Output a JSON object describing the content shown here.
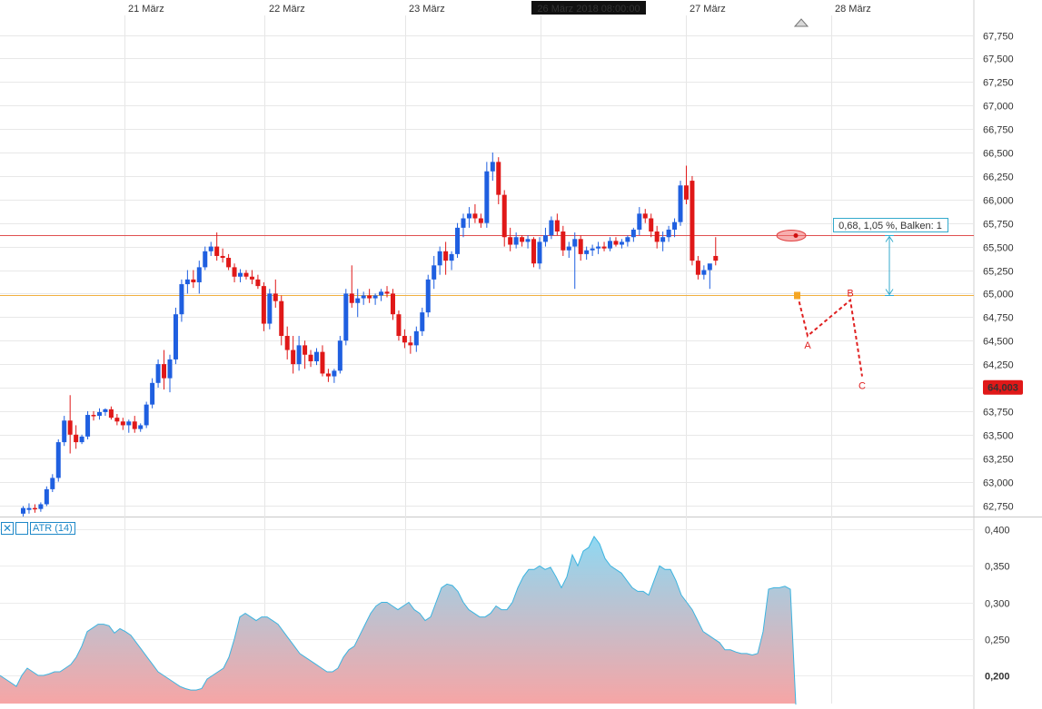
{
  "chart_data": [
    {
      "type": "candlestick",
      "dates": [
        "21 März",
        "22 März",
        "23 März",
        "27 März",
        "28 März"
      ],
      "highlighted_date": "26 März 2018 08:00:00",
      "y_ticks": [
        "67,750",
        "67,500",
        "67,250",
        "67,000",
        "66,750",
        "66,500",
        "66,250",
        "66,000",
        "65,750",
        "65,500",
        "65,250",
        "65,000",
        "64,750",
        "64,500",
        "64,250",
        "64,000",
        "63,750",
        "63,500",
        "63,250",
        "63,000",
        "62,750"
      ],
      "ylim": [
        62.6,
        67.9
      ],
      "current_price_label": "64,003",
      "candles": [
        [
          62.66,
          62.74,
          62.63,
          62.72
        ],
        [
          62.7,
          62.77,
          62.66,
          62.72
        ],
        [
          62.72,
          62.76,
          62.67,
          62.71
        ],
        [
          62.71,
          62.78,
          62.68,
          62.76
        ],
        [
          62.76,
          62.95,
          62.74,
          62.92
        ],
        [
          62.92,
          63.08,
          62.89,
          63.04
        ],
        [
          63.04,
          63.45,
          63.0,
          63.42
        ],
        [
          63.42,
          63.7,
          63.38,
          63.65
        ],
        [
          63.65,
          63.92,
          63.3,
          63.5
        ],
        [
          63.5,
          63.6,
          63.35,
          63.42
        ],
        [
          63.42,
          63.5,
          63.4,
          63.48
        ],
        [
          63.48,
          63.75,
          63.45,
          63.71
        ],
        [
          63.71,
          63.75,
          63.65,
          63.7
        ],
        [
          63.7,
          63.78,
          63.66,
          63.74
        ],
        [
          63.74,
          63.78,
          63.7,
          63.77
        ],
        [
          63.77,
          63.8,
          63.66,
          63.68
        ],
        [
          63.68,
          63.72,
          63.6,
          63.64
        ],
        [
          63.64,
          63.68,
          63.55,
          63.6
        ],
        [
          63.6,
          63.66,
          63.52,
          63.64
        ],
        [
          63.64,
          63.7,
          63.52,
          63.56
        ],
        [
          63.56,
          63.62,
          63.53,
          63.6
        ],
        [
          63.6,
          63.85,
          63.57,
          63.82
        ],
        [
          63.82,
          64.1,
          63.78,
          64.05
        ],
        [
          64.05,
          64.3,
          64.0,
          64.25
        ],
        [
          64.25,
          64.4,
          63.98,
          64.1
        ],
        [
          64.1,
          64.35,
          63.95,
          64.3
        ],
        [
          64.3,
          64.85,
          64.25,
          64.78
        ],
        [
          64.78,
          65.15,
          64.7,
          65.1
        ],
        [
          65.1,
          65.25,
          65.0,
          65.15
        ],
        [
          65.15,
          65.25,
          65.06,
          65.12
        ],
        [
          65.12,
          65.35,
          65.0,
          65.28
        ],
        [
          65.28,
          65.5,
          65.25,
          65.45
        ],
        [
          65.45,
          65.55,
          65.4,
          65.5
        ],
        [
          65.5,
          65.65,
          65.35,
          65.4
        ],
        [
          65.4,
          65.48,
          65.33,
          65.38
        ],
        [
          65.38,
          65.42,
          65.25,
          65.28
        ],
        [
          65.28,
          65.32,
          65.12,
          65.18
        ],
        [
          65.18,
          65.26,
          65.12,
          65.22
        ],
        [
          65.22,
          65.25,
          65.15,
          65.18
        ],
        [
          65.18,
          65.25,
          65.1,
          65.15
        ],
        [
          65.15,
          65.2,
          65.05,
          65.08
        ],
        [
          65.08,
          65.12,
          64.6,
          64.68
        ],
        [
          64.68,
          65.05,
          64.62,
          65.0
        ],
        [
          65.0,
          65.15,
          64.85,
          64.92
        ],
        [
          64.92,
          64.98,
          64.45,
          64.55
        ],
        [
          64.55,
          64.65,
          64.3,
          64.4
        ],
        [
          64.4,
          64.55,
          64.15,
          64.25
        ],
        [
          64.25,
          64.55,
          64.18,
          64.45
        ],
        [
          64.45,
          64.5,
          64.2,
          64.35
        ],
        [
          64.35,
          64.4,
          64.22,
          64.28
        ],
        [
          64.28,
          64.42,
          64.24,
          64.38
        ],
        [
          64.38,
          64.45,
          64.12,
          64.15
        ],
        [
          64.15,
          64.2,
          64.06,
          64.12
        ],
        [
          64.12,
          64.2,
          64.05,
          64.18
        ],
        [
          64.18,
          64.55,
          64.15,
          64.5
        ],
        [
          64.5,
          65.05,
          64.45,
          65.0
        ],
        [
          65.0,
          65.3,
          64.85,
          64.9
        ],
        [
          64.9,
          65.05,
          64.75,
          64.95
        ],
        [
          64.95,
          65.02,
          64.88,
          64.98
        ],
        [
          64.98,
          65.05,
          64.9,
          64.95
        ],
        [
          64.95,
          65.0,
          64.88,
          64.98
        ],
        [
          64.98,
          65.05,
          64.92,
          65.02
        ],
        [
          65.02,
          65.08,
          64.96,
          65.0
        ],
        [
          65.0,
          65.05,
          64.72,
          64.78
        ],
        [
          64.78,
          64.82,
          64.5,
          64.55
        ],
        [
          64.55,
          64.62,
          64.42,
          64.48
        ],
        [
          64.48,
          64.55,
          64.36,
          64.45
        ],
        [
          64.45,
          64.65,
          64.38,
          64.6
        ],
        [
          64.6,
          64.85,
          64.55,
          64.8
        ],
        [
          64.8,
          65.2,
          64.75,
          65.15
        ],
        [
          65.15,
          65.4,
          65.05,
          65.3
        ],
        [
          65.3,
          65.5,
          65.2,
          65.45
        ],
        [
          65.45,
          65.55,
          65.2,
          65.35
        ],
        [
          65.35,
          65.45,
          65.25,
          65.42
        ],
        [
          65.42,
          65.75,
          65.38,
          65.7
        ],
        [
          65.7,
          65.85,
          65.6,
          65.8
        ],
        [
          65.8,
          65.92,
          65.7,
          65.85
        ],
        [
          65.85,
          65.95,
          65.75,
          65.8
        ],
        [
          65.8,
          65.85,
          65.7,
          65.75
        ],
        [
          65.75,
          66.4,
          65.7,
          66.3
        ],
        [
          66.3,
          66.5,
          66.2,
          66.4
        ],
        [
          66.4,
          66.45,
          65.95,
          66.05
        ],
        [
          66.05,
          66.1,
          65.5,
          65.6
        ],
        [
          65.6,
          65.7,
          65.45,
          65.52
        ],
        [
          65.52,
          65.65,
          65.48,
          65.6
        ],
        [
          65.6,
          65.62,
          65.5,
          65.55
        ],
        [
          65.55,
          65.62,
          65.48,
          65.58
        ],
        [
          65.58,
          65.6,
          65.28,
          65.32
        ],
        [
          65.32,
          65.6,
          65.26,
          65.55
        ],
        [
          65.55,
          65.7,
          65.5,
          65.62
        ],
        [
          65.62,
          65.82,
          65.58,
          65.78
        ],
        [
          65.78,
          65.85,
          65.62,
          65.66
        ],
        [
          65.66,
          65.72,
          65.4,
          65.46
        ],
        [
          65.46,
          65.55,
          65.38,
          65.5
        ],
        [
          65.5,
          65.65,
          65.05,
          65.58
        ],
        [
          65.58,
          65.62,
          65.35,
          65.42
        ],
        [
          65.42,
          65.5,
          65.36,
          65.46
        ],
        [
          65.46,
          65.52,
          65.4,
          65.48
        ],
        [
          65.48,
          65.55,
          65.42,
          65.5
        ],
        [
          65.5,
          65.55,
          65.45,
          65.48
        ],
        [
          65.48,
          65.6,
          65.45,
          65.56
        ],
        [
          65.56,
          65.6,
          65.5,
          65.52
        ],
        [
          65.52,
          65.58,
          65.48,
          65.55
        ],
        [
          65.55,
          65.62,
          65.5,
          65.6
        ],
        [
          65.6,
          65.7,
          65.55,
          65.68
        ],
        [
          65.68,
          65.92,
          65.62,
          65.85
        ],
        [
          65.85,
          65.9,
          65.75,
          65.8
        ],
        [
          65.8,
          65.85,
          65.6,
          65.66
        ],
        [
          65.66,
          65.72,
          65.48,
          65.55
        ],
        [
          65.55,
          65.66,
          65.45,
          65.6
        ],
        [
          65.6,
          65.72,
          65.55,
          65.68
        ],
        [
          65.68,
          65.8,
          65.6,
          65.76
        ],
        [
          65.76,
          66.2,
          65.72,
          66.15
        ],
        [
          66.15,
          66.36,
          65.95,
          66.0
        ],
        [
          66.2,
          66.25,
          65.3,
          65.35
        ],
        [
          65.35,
          65.4,
          65.15,
          65.2
        ],
        [
          65.2,
          65.3,
          65.15,
          65.25
        ],
        [
          65.25,
          65.3,
          65.05,
          65.32
        ],
        [
          65.4,
          65.6,
          65.3,
          65.35
        ]
      ],
      "horizontal_lines": [
        65.62,
        64.98
      ],
      "measure_label": "0,68, 1,05 %, Balken: 1",
      "wave_labels": [
        "A",
        "B",
        "C"
      ],
      "wave_points": [
        [
          64.98,
          0
        ],
        [
          64.55,
          1
        ],
        [
          64.93,
          2
        ],
        [
          64.12,
          3
        ]
      ]
    },
    {
      "type": "area",
      "title": "ATR (14)",
      "y_ticks": [
        "0,400",
        "0,350",
        "0,300",
        "0,250",
        "0,200"
      ],
      "ylim": [
        0.16,
        0.415
      ],
      "values": [
        0.2,
        0.195,
        0.19,
        0.185,
        0.2,
        0.21,
        0.205,
        0.2,
        0.2,
        0.202,
        0.205,
        0.205,
        0.21,
        0.215,
        0.225,
        0.24,
        0.26,
        0.265,
        0.27,
        0.27,
        0.268,
        0.258,
        0.264,
        0.26,
        0.255,
        0.245,
        0.235,
        0.225,
        0.215,
        0.205,
        0.2,
        0.195,
        0.19,
        0.185,
        0.182,
        0.18,
        0.18,
        0.182,
        0.195,
        0.2,
        0.205,
        0.21,
        0.225,
        0.25,
        0.28,
        0.285,
        0.28,
        0.275,
        0.28,
        0.28,
        0.275,
        0.27,
        0.26,
        0.25,
        0.24,
        0.23,
        0.225,
        0.22,
        0.215,
        0.21,
        0.205,
        0.205,
        0.21,
        0.225,
        0.235,
        0.24,
        0.255,
        0.27,
        0.285,
        0.295,
        0.3,
        0.3,
        0.295,
        0.29,
        0.295,
        0.3,
        0.29,
        0.285,
        0.275,
        0.28,
        0.3,
        0.32,
        0.325,
        0.323,
        0.315,
        0.3,
        0.29,
        0.285,
        0.28,
        0.28,
        0.285,
        0.295,
        0.29,
        0.29,
        0.3,
        0.32,
        0.335,
        0.345,
        0.345,
        0.35,
        0.345,
        0.348,
        0.335,
        0.32,
        0.335,
        0.365,
        0.35,
        0.37,
        0.375,
        0.39,
        0.38,
        0.36,
        0.35,
        0.345,
        0.34,
        0.33,
        0.32,
        0.315,
        0.315,
        0.31,
        0.33,
        0.35,
        0.345,
        0.345,
        0.33,
        0.31,
        0.3,
        0.29,
        0.275,
        0.26,
        0.255,
        0.25,
        0.245,
        0.235,
        0.235,
        0.232,
        0.23,
        0.23,
        0.228,
        0.23,
        0.26,
        0.318,
        0.32,
        0.32,
        0.322,
        0.318,
        0.16
      ]
    }
  ]
}
